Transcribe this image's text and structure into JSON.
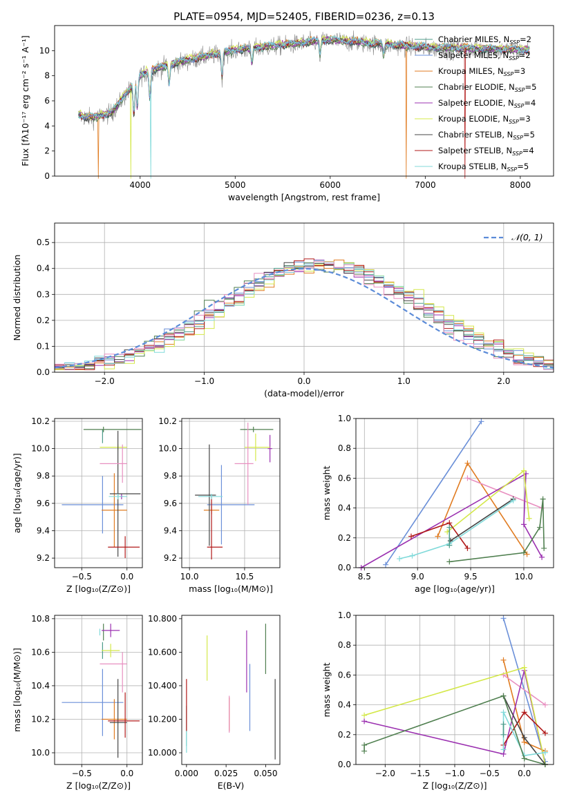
{
  "figure_title": "PLATE=0954, MJD=52405, FIBERID=0236, z=0.13",
  "models": [
    {
      "label": "Chabrier MILES, N",
      "sub": "SSP",
      "tail": "=2",
      "color": "#4c9c8a"
    },
    {
      "label": "Salpeter MILES, N",
      "sub": "SSP",
      "tail": "=2",
      "color": "#6a8fd8"
    },
    {
      "label": "Kroupa MILES, N",
      "sub": "SSP",
      "tail": "=3",
      "color": "#e07b20"
    },
    {
      "label": "Chabrier ELODIE, N",
      "sub": "SSP",
      "tail": "=5",
      "color": "#4f7f4f"
    },
    {
      "label": "Salpeter ELODIE, N",
      "sub": "SSP",
      "tail": "=4",
      "color": "#9b30b0"
    },
    {
      "label": "Kroupa ELODIE, N",
      "sub": "SSP",
      "tail": "=3",
      "color": "#d4e84a"
    },
    {
      "label": "Chabrier STELIB, N",
      "sub": "SSP",
      "tail": "=5",
      "color": "#444444"
    },
    {
      "label": "Salpeter STELIB, N",
      "sub": "SSP",
      "tail": "=4",
      "color": "#b01818"
    },
    {
      "label": "Kroupa STELIB, N",
      "sub": "SSP",
      "tail": "=5",
      "color": "#80dada"
    }
  ],
  "chart_data": [
    {
      "id": "spectrum",
      "type": "line",
      "xlabel": "wavelength [Angstrom, rest frame]",
      "ylabel": "Flux [fλ10⁻¹⁷ erg cm⁻² s⁻¹ A⁻¹]",
      "xlim": [
        3100,
        8350
      ],
      "ylim": [
        0,
        12
      ],
      "xticks": [
        4000,
        5000,
        6000,
        7000,
        8000
      ],
      "yticks": [
        0,
        2,
        4,
        6,
        8,
        10
      ],
      "x_range_data": [
        3350,
        8100
      ],
      "continuum": [
        [
          3350,
          4.8
        ],
        [
          3500,
          4.6
        ],
        [
          3700,
          5.0
        ],
        [
          3900,
          7.0
        ],
        [
          4000,
          8.0
        ],
        [
          4200,
          8.6
        ],
        [
          4500,
          9.2
        ],
        [
          5000,
          10.0
        ],
        [
          5500,
          10.4
        ],
        [
          6000,
          10.8
        ],
        [
          6500,
          10.5
        ],
        [
          7000,
          10.2
        ],
        [
          7500,
          10.1
        ],
        [
          8100,
          10.0
        ]
      ],
      "grid": false,
      "legend_position": "upper right"
    },
    {
      "id": "residuals",
      "type": "histogram",
      "xlabel": "(data-model)/error",
      "ylabel": "Normed distribution",
      "xlim": [
        -2.5,
        2.5
      ],
      "ylim": [
        0,
        0.575
      ],
      "xticks": [
        -2,
        -1,
        0,
        1,
        2
      ],
      "yticks": [
        0.0,
        0.1,
        0.2,
        0.3,
        0.4,
        0.5
      ],
      "bin_width": 0.1,
      "reference_curve": {
        "label": "𝒩(0, 1)",
        "color": "#5b8bd8",
        "style": "dashed"
      },
      "grid": true
    },
    {
      "id": "age_vs_Z",
      "type": "errorbar",
      "xlabel": "Z [log₁₀(Z/Z⊙)]",
      "ylabel": "age  [log₁₀(age/yr)]",
      "xlim": [
        -0.8,
        0.17
      ],
      "ylim": [
        9.13,
        10.22
      ],
      "xticks": [
        -0.5,
        0.0
      ],
      "yticks": [
        9.2,
        9.4,
        9.6,
        9.8,
        10.0,
        10.2
      ],
      "points": [
        {
          "m": 0,
          "x": -0.27,
          "y": 10.09,
          "xe": [
            0.0,
            0.0
          ],
          "ye": [
            0.05,
            0.05
          ]
        },
        {
          "m": 1,
          "x": -0.27,
          "y": 9.59,
          "xe": [
            0.45,
            0.23
          ],
          "ye": [
            0.21,
            0.21
          ]
        },
        {
          "m": 2,
          "x": -0.14,
          "y": 9.55,
          "xe": [
            0.14,
            0.14
          ],
          "ye": [
            0.27,
            0.27
          ]
        },
        {
          "m": 3,
          "x": -0.26,
          "y": 10.14,
          "xe": [
            0.22,
            0.42
          ],
          "ye": [
            0.02,
            0.02
          ]
        },
        {
          "m": 4,
          "x": -0.06,
          "y": 9.65,
          "xe": [
            0.02,
            0.02
          ],
          "ye": [
            0.02,
            0.02
          ]
        },
        {
          "m": 5,
          "x": -0.1,
          "y": 10.01,
          "xe": [
            0.2,
            0.1
          ],
          "ye": [
            0.02,
            0.02
          ]
        },
        {
          "m": 6,
          "x": -0.1,
          "y": 9.67,
          "xe": [
            0.09,
            0.25
          ],
          "ye": [
            0.46,
            0.46
          ]
        },
        {
          "m": 7,
          "x": -0.02,
          "y": 9.28,
          "xe": [
            0.19,
            0.16
          ],
          "ye": [
            0.08,
            0.08
          ]
        },
        {
          "m": 8,
          "x": -0.1,
          "y": 9.65,
          "xe": [
            0.1,
            0.1
          ],
          "ye": [
            0.02,
            0.02
          ]
        },
        {
          "m": 9,
          "x": -0.05,
          "y": 9.89,
          "xe": [
            0.25,
            0.05
          ],
          "ye": [
            0.14,
            0.14
          ],
          "color": "#e88fc0"
        }
      ],
      "grid": true
    },
    {
      "id": "age_vs_mass",
      "type": "errorbar",
      "xlabel": "mass [log₁₀(M/M⊙)]",
      "ylabel": "",
      "xlim": [
        9.93,
        10.82
      ],
      "ylim": [
        9.13,
        10.22
      ],
      "xticks": [
        10.0,
        10.5
      ],
      "yticks": [
        9.2,
        9.4,
        9.6,
        9.8,
        10.0,
        10.2
      ],
      "points": [
        {
          "m": 1,
          "x": 10.29,
          "y": 9.59,
          "xe": [
            0.13,
            0.3
          ],
          "ye": [
            0.29,
            0.29
          ]
        },
        {
          "m": 2,
          "x": 10.2,
          "y": 9.55,
          "xe": [
            0.07,
            0.07
          ],
          "ye": [
            0.03,
            0.03
          ]
        },
        {
          "m": 3,
          "x": 10.58,
          "y": 10.14,
          "xe": [
            0.12,
            0.18
          ],
          "ye": [
            0.02,
            0.02
          ]
        },
        {
          "m": 4,
          "x": 10.73,
          "y": 10.0,
          "xe": [
            0.02,
            0.02
          ],
          "ye": [
            0.1,
            0.1
          ]
        },
        {
          "m": 5,
          "x": 10.6,
          "y": 10.01,
          "xe": [
            0.1,
            0.13
          ],
          "ye": [
            0.1,
            0.1
          ]
        },
        {
          "m": 6,
          "x": 10.18,
          "y": 9.66,
          "xe": [
            0.13,
            0.06
          ],
          "ye": [
            0.37,
            0.37
          ]
        },
        {
          "m": 7,
          "x": 10.2,
          "y": 9.28,
          "xe": [
            0.04,
            0.1
          ],
          "ye": [
            0.09,
            0.37
          ]
        },
        {
          "m": 8,
          "x": 10.2,
          "y": 9.65,
          "xe": [
            0.12,
            0.1
          ],
          "ye": [
            0.02,
            0.02
          ]
        },
        {
          "m": 9,
          "x": 10.53,
          "y": 9.89,
          "xe": [
            0.12,
            0.05
          ],
          "ye": [
            0.3,
            0.3
          ],
          "color": "#e88fc0"
        }
      ],
      "grid": true
    },
    {
      "id": "mass_weight_vs_age",
      "type": "line",
      "xlabel": "age  [log₁₀(age/yr)]",
      "ylabel": "mass weight",
      "xlim": [
        8.42,
        10.28
      ],
      "ylim": [
        0,
        1
      ],
      "xticks": [
        8.5,
        9.0,
        9.5,
        10.0
      ],
      "yticks": [
        0.0,
        0.2,
        0.4,
        0.6,
        0.8,
        1.0
      ],
      "series": [
        {
          "m": 1,
          "x": [
            8.7,
            9.6
          ],
          "y": [
            0.02,
            0.98
          ]
        },
        {
          "m": 2,
          "x": [
            9.19,
            9.47,
            10.03
          ],
          "y": [
            0.21,
            0.7,
            0.09
          ]
        },
        {
          "m": 9,
          "x": [
            9.47,
            10.17
          ],
          "y": [
            0.6,
            0.4
          ],
          "color": "#e88fc0"
        },
        {
          "m": 4,
          "x": [
            8.47,
            10.02,
            10.0,
            10.17
          ],
          "y": [
            0.0,
            0.63,
            0.29,
            0.07
          ]
        },
        {
          "m": 5,
          "x": [
            9.28,
            10.0,
            10.05
          ],
          "y": [
            0.24,
            0.65,
            0.33
          ]
        },
        {
          "m": 7,
          "x": [
            8.94,
            9.3,
            9.47
          ],
          "y": [
            0.21,
            0.3,
            0.13
          ]
        },
        {
          "m": 6,
          "x": [
            9.31,
            9.9
          ],
          "y": [
            0.18,
            0.46
          ]
        },
        {
          "m": 8,
          "x": [
            8.83,
            8.95,
            9.3,
            9.9
          ],
          "y": [
            0.06,
            0.08,
            0.16,
            0.45
          ]
        },
        {
          "m": 3,
          "x": [
            9.3,
            10.0,
            10.15,
            10.18,
            10.19
          ],
          "y": [
            0.04,
            0.1,
            0.27,
            0.46,
            0.13
          ]
        },
        {
          "m": 0,
          "x": [
            9.3,
            9.3
          ],
          "y": [
            0.27,
            0.15
          ]
        }
      ],
      "grid": true
    },
    {
      "id": "mass_vs_Z",
      "type": "errorbar",
      "xlabel": "Z [log₁₀(Z/Z⊙)]",
      "ylabel": "mass [log₁₀(M/M⊙)]",
      "xlim": [
        -0.8,
        0.17
      ],
      "ylim": [
        9.93,
        10.82
      ],
      "xticks": [
        -0.5,
        0.0
      ],
      "yticks": [
        10.0,
        10.2,
        10.4,
        10.6,
        10.8
      ],
      "points": [
        {
          "m": 0,
          "x": -0.27,
          "y": 10.61,
          "xe": [
            0.0,
            0.0
          ],
          "ye": [
            0.05,
            0.05
          ]
        },
        {
          "m": 1,
          "x": -0.27,
          "y": 10.3,
          "xe": [
            0.45,
            0.23
          ],
          "ye": [
            0.2,
            0.2
          ]
        },
        {
          "m": 2,
          "x": -0.14,
          "y": 10.2,
          "xe": [
            0.14,
            0.14
          ],
          "ye": [
            0.12,
            0.12
          ]
        },
        {
          "m": 3,
          "x": -0.26,
          "y": 10.72,
          "xe": [
            0.0,
            0.0
          ],
          "ye": [
            0.05,
            0.05
          ]
        },
        {
          "m": 4,
          "x": -0.18,
          "y": 10.73,
          "xe": [
            0.1,
            0.1
          ],
          "ye": [
            0.04,
            0.04
          ]
        },
        {
          "m": 5,
          "x": -0.18,
          "y": 10.61,
          "xe": [
            0.1,
            0.1
          ],
          "ye": [
            0.04,
            0.04
          ]
        },
        {
          "m": 6,
          "x": -0.1,
          "y": 10.18,
          "xe": [
            0.09,
            0.1
          ],
          "ye": [
            0.21,
            0.26
          ]
        },
        {
          "m": 7,
          "x": -0.02,
          "y": 10.19,
          "xe": [
            0.19,
            0.16
          ],
          "ye": [
            0.1,
            0.17
          ]
        },
        {
          "m": 8,
          "x": -0.3,
          "y": 10.72,
          "xe": [
            0.0,
            0.0
          ],
          "ye": [
            0.02,
            0.02
          ]
        },
        {
          "m": 9,
          "x": -0.05,
          "y": 10.53,
          "xe": [
            0.25,
            0.05
          ],
          "ye": [
            0.17,
            0.07
          ],
          "color": "#e88fc0"
        }
      ],
      "grid": true
    },
    {
      "id": "mass_vs_ebv",
      "type": "errorbar",
      "xlabel": "E(B-V)",
      "ylabel": "",
      "xlim": [
        -0.003,
        0.059
      ],
      "ylim": [
        9.93,
        10.82
      ],
      "xticks": [
        0.0,
        0.025,
        0.05
      ],
      "yticks": [
        10.0,
        10.2,
        10.4,
        10.6,
        10.8
      ],
      "points": [
        {
          "m": 0,
          "x": 0.0,
          "y": 10.12,
          "xe": [
            0,
            0
          ],
          "ye": [
            0.08,
            0.16
          ]
        },
        {
          "m": 1,
          "x": 0.04,
          "y": 10.3,
          "xe": [
            0,
            0
          ],
          "ye": [
            0.17,
            0.23
          ]
        },
        {
          "m": 2,
          "x": 0.027,
          "y": 10.2,
          "xe": [
            0,
            0
          ],
          "ye": [
            0.07,
            0.13
          ]
        },
        {
          "m": 3,
          "x": 0.05,
          "y": 10.62,
          "xe": [
            0,
            0
          ],
          "ye": [
            0.15,
            0.15
          ]
        },
        {
          "m": 4,
          "x": 0.038,
          "y": 10.56,
          "xe": [
            0,
            0
          ],
          "ye": [
            0.2,
            0.17
          ]
        },
        {
          "m": 5,
          "x": 0.013,
          "y": 10.57,
          "xe": [
            0,
            0
          ],
          "ye": [
            0.14,
            0.13
          ]
        },
        {
          "m": 6,
          "x": 0.056,
          "y": 10.2,
          "xe": [
            0,
            0
          ],
          "ye": [
            0.24,
            0.24
          ]
        },
        {
          "m": 7,
          "x": 0.0,
          "y": 10.33,
          "xe": [
            0,
            0
          ],
          "ye": [
            0.2,
            0.11
          ]
        },
        {
          "m": 8,
          "x": 0.0,
          "y": 10.03,
          "xe": [
            0,
            0
          ],
          "ye": [
            0.03,
            0.1
          ]
        },
        {
          "m": 9,
          "x": 0.027,
          "y": 10.24,
          "xe": [
            0,
            0
          ],
          "ye": [
            0.12,
            0.1
          ],
          "color": "#e88fc0"
        }
      ],
      "grid": false
    },
    {
      "id": "mass_weight_vs_Z",
      "type": "line",
      "xlabel": "Z [log₁₀(Z/Z⊙)]",
      "ylabel": "mass weight",
      "xlim": [
        -2.42,
        0.42
      ],
      "ylim": [
        0,
        1
      ],
      "xticks": [
        -2.0,
        -1.5,
        -1.0,
        -0.5,
        0.0
      ],
      "yticks": [
        0.0,
        0.2,
        0.4,
        0.6,
        0.8,
        1.0
      ],
      "series": [
        {
          "m": 1,
          "x": [
            -0.3,
            0.3
          ],
          "y": [
            0.98,
            0.02
          ]
        },
        {
          "m": 2,
          "x": [
            -0.3,
            0.0,
            0.3
          ],
          "y": [
            0.7,
            0.15,
            0.09
          ]
        },
        {
          "m": 9,
          "x": [
            -0.3,
            0.3
          ],
          "y": [
            0.6,
            0.4
          ],
          "color": "#e88fc0"
        },
        {
          "m": 4,
          "x": [
            -2.3,
            -0.3,
            0.0,
            0.3
          ],
          "y": [
            0.29,
            0.07,
            0.63,
            0.0
          ]
        },
        {
          "m": 5,
          "x": [
            -2.3,
            0.0,
            0.3
          ],
          "y": [
            0.33,
            0.65,
            0.0
          ]
        },
        {
          "m": 7,
          "x": [
            -0.3,
            0.0,
            0.3
          ],
          "y": [
            0.13,
            0.35,
            0.21
          ]
        },
        {
          "m": 6,
          "x": [
            -0.3,
            0.0,
            0.3
          ],
          "y": [
            0.46,
            0.18,
            0.0
          ]
        },
        {
          "m": 8,
          "x": [
            -0.3,
            -0.3,
            0.0,
            0.3
          ],
          "y": [
            0.1,
            0.35,
            0.06,
            0.08
          ]
        },
        {
          "m": 3,
          "x": [
            -2.3,
            -2.3,
            -0.3,
            0.0,
            0.3
          ],
          "y": [
            0.09,
            0.13,
            0.46,
            0.04,
            0.0
          ]
        },
        {
          "m": 0,
          "x": [
            -0.3,
            -0.3
          ],
          "y": [
            0.27,
            0.2
          ]
        }
      ],
      "grid": true
    }
  ]
}
